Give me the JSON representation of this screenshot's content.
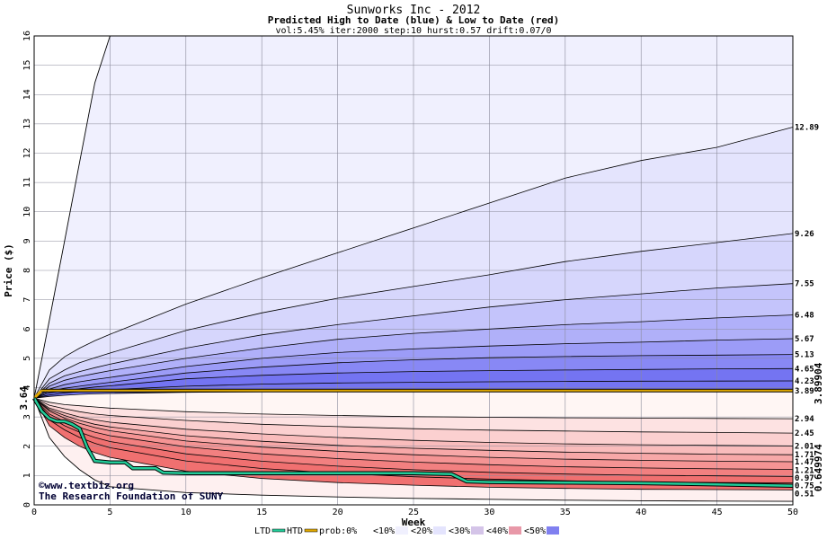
{
  "chart_data": {
    "type": "area",
    "title": "Sunworks Inc - 2012",
    "subtitle": "Predicted High to Date (blue) &  Low to Date (red)",
    "params": "vol:5.45% iter:2000 step:10 hurst:0.57 drift:0.07/0",
    "xlabel": "Week",
    "ylabel": "Price ($)",
    "xlim": [
      0,
      50
    ],
    "ylim": [
      0,
      16
    ],
    "xticks": [
      0,
      5,
      10,
      15,
      20,
      25,
      30,
      35,
      40,
      45,
      50
    ],
    "yticks": [
      0,
      1,
      2,
      3,
      4,
      5,
      6,
      7,
      8,
      9,
      10,
      11,
      12,
      13,
      14,
      15,
      16
    ],
    "grid": true,
    "start_value": 3.64,
    "start_label": "3.64",
    "current_label": "3.89904",
    "current_value": 3.89904,
    "low_label": "0.649974",
    "low_value": 0.649974,
    "high_end_labels": [
      "12.89",
      "9.26",
      "7.55",
      "6.48",
      "5.67",
      "5.13",
      "4.65",
      "4.23",
      "3.89"
    ],
    "low_end_labels": [
      "2.94",
      "2.45",
      "2.01",
      "1.71",
      "1.47",
      "1.21",
      "0.97",
      "0.75",
      "0.51"
    ],
    "x": [
      0,
      1,
      2,
      3,
      4,
      5,
      10,
      15,
      20,
      25,
      30,
      35,
      40,
      45,
      50
    ],
    "high_series": [
      {
        "end": 12.89,
        "values": [
          3.64,
          4.6,
          5.05,
          5.35,
          5.6,
          5.82,
          6.85,
          7.75,
          8.6,
          9.45,
          10.3,
          11.15,
          11.75,
          12.2,
          12.89
        ]
      },
      {
        "end": 9.26,
        "values": [
          3.64,
          4.3,
          4.6,
          4.85,
          5.02,
          5.18,
          5.95,
          6.55,
          7.05,
          7.45,
          7.85,
          8.3,
          8.65,
          8.95,
          9.26
        ]
      },
      {
        "end": 7.55,
        "values": [
          3.64,
          4.15,
          4.4,
          4.55,
          4.68,
          4.8,
          5.35,
          5.8,
          6.15,
          6.45,
          6.75,
          7.0,
          7.2,
          7.4,
          7.55
        ]
      },
      {
        "end": 6.48,
        "values": [
          3.64,
          4.05,
          4.25,
          4.38,
          4.48,
          4.58,
          5.0,
          5.35,
          5.65,
          5.85,
          6.0,
          6.15,
          6.25,
          6.38,
          6.48
        ]
      },
      {
        "end": 5.67,
        "values": [
          3.64,
          3.95,
          4.1,
          4.2,
          4.28,
          4.35,
          4.72,
          5.0,
          5.2,
          5.32,
          5.42,
          5.5,
          5.55,
          5.62,
          5.67
        ]
      },
      {
        "end": 5.13,
        "values": [
          3.64,
          3.88,
          3.98,
          4.05,
          4.12,
          4.18,
          4.5,
          4.7,
          4.85,
          4.95,
          5.02,
          5.06,
          5.09,
          5.11,
          5.13
        ]
      },
      {
        "end": 4.65,
        "values": [
          3.64,
          3.82,
          3.9,
          3.96,
          4.02,
          4.06,
          4.3,
          4.42,
          4.5,
          4.55,
          4.58,
          4.6,
          4.62,
          4.64,
          4.65
        ]
      },
      {
        "end": 4.23,
        "values": [
          3.64,
          3.75,
          3.82,
          3.86,
          3.9,
          3.93,
          4.05,
          4.12,
          4.16,
          4.18,
          4.2,
          4.21,
          4.22,
          4.225,
          4.23
        ]
      },
      {
        "end": 3.89,
        "values": [
          3.64,
          3.7,
          3.74,
          3.77,
          3.79,
          3.8,
          3.84,
          3.86,
          3.87,
          3.875,
          3.88,
          3.885,
          3.887,
          3.889,
          3.89
        ]
      }
    ],
    "low_series": [
      {
        "end": 2.94,
        "values": [
          3.64,
          3.5,
          3.42,
          3.38,
          3.34,
          3.3,
          3.18,
          3.1,
          3.05,
          3.01,
          2.99,
          2.97,
          2.96,
          2.95,
          2.94
        ]
      },
      {
        "end": 2.45,
        "values": [
          3.64,
          3.4,
          3.28,
          3.18,
          3.1,
          3.05,
          2.88,
          2.75,
          2.67,
          2.6,
          2.55,
          2.52,
          2.49,
          2.47,
          2.45
        ]
      },
      {
        "end": 2.01,
        "values": [
          3.64,
          3.3,
          3.14,
          3.0,
          2.9,
          2.82,
          2.58,
          2.42,
          2.3,
          2.2,
          2.13,
          2.08,
          2.05,
          2.03,
          2.01
        ]
      },
      {
        "end": 1.71,
        "values": [
          3.64,
          3.25,
          3.05,
          2.88,
          2.75,
          2.66,
          2.36,
          2.17,
          2.03,
          1.93,
          1.86,
          1.8,
          1.76,
          1.73,
          1.71
        ]
      },
      {
        "end": 1.47,
        "values": [
          3.64,
          3.2,
          2.96,
          2.78,
          2.64,
          2.53,
          2.18,
          1.97,
          1.83,
          1.71,
          1.62,
          1.56,
          1.52,
          1.49,
          1.47
        ]
      },
      {
        "end": 1.21,
        "values": [
          3.64,
          3.1,
          2.84,
          2.64,
          2.48,
          2.36,
          1.98,
          1.74,
          1.58,
          1.46,
          1.37,
          1.3,
          1.26,
          1.23,
          1.21
        ]
      },
      {
        "end": 0.97,
        "values": [
          3.64,
          3.0,
          2.7,
          2.48,
          2.3,
          2.16,
          1.74,
          1.49,
          1.32,
          1.2,
          1.11,
          1.05,
          1.01,
          0.99,
          0.97
        ]
      },
      {
        "end": 0.75,
        "values": [
          3.64,
          2.9,
          2.56,
          2.3,
          2.1,
          1.95,
          1.5,
          1.24,
          1.08,
          0.96,
          0.88,
          0.82,
          0.78,
          0.76,
          0.75
        ]
      },
      {
        "end": 0.51,
        "values": [
          3.64,
          2.7,
          2.3,
          2.0,
          1.78,
          1.62,
          1.15,
          0.9,
          0.76,
          0.67,
          0.6,
          0.56,
          0.53,
          0.52,
          0.51
        ]
      }
    ],
    "envelope_upper": {
      "x": [
        0,
        1,
        2,
        3,
        4,
        5
      ],
      "values": [
        3.64,
        6.3,
        9.0,
        11.7,
        14.4,
        16
      ]
    },
    "envelope_lower": {
      "x": [
        0,
        1,
        2,
        3,
        4,
        5,
        10,
        15,
        20,
        25,
        30,
        35,
        40,
        45,
        50
      ],
      "values": [
        3.64,
        2.3,
        1.65,
        1.2,
        0.85,
        0.62,
        0.42,
        0.33,
        0.27,
        0.22,
        0.19,
        0.16,
        0.14,
        0.13,
        0.12
      ]
    },
    "ltd_series": {
      "name": "LTD",
      "x": [
        0,
        0.5,
        1,
        1.5,
        2,
        2.5,
        3,
        3.5,
        4,
        5,
        6,
        6.5,
        8,
        8.5,
        10,
        15,
        20,
        25,
        27.5,
        28.5,
        30,
        35,
        40,
        45,
        50
      ],
      "values": [
        3.64,
        3.2,
        2.95,
        2.85,
        2.85,
        2.75,
        2.6,
        1.95,
        1.5,
        1.45,
        1.45,
        1.25,
        1.25,
        1.1,
        1.08,
        1.08,
        1.08,
        1.08,
        1.05,
        0.8,
        0.78,
        0.76,
        0.74,
        0.7,
        0.649974
      ]
    },
    "htd_series": {
      "name": "HTD",
      "values": [
        3.64,
        3.89904
      ]
    },
    "legend_labels": [
      "prob:0%",
      "<10%",
      "<20%",
      "<30%",
      "<40%",
      "<50%"
    ],
    "credit_line1": "©www.textbiz.org",
    "credit_line2": "The Research Foundation of SUNY",
    "colors": {
      "high_bands": [
        "#f0f0fe",
        "#e4e4fd",
        "#d6d6fc",
        "#c4c4fb",
        "#b0b0f9",
        "#9c9cf7",
        "#8888f5",
        "#7474f2"
      ],
      "low_bands": [
        "#fef0f0",
        "#fde2e2",
        "#fbd0d0",
        "#f9bcbc",
        "#f7a8a8",
        "#f59494",
        "#f28080",
        "#f07070"
      ],
      "legend_swatches": [
        "#ffffff",
        "#f0f0fe",
        "#e4e4fd",
        "#d4c4e8",
        "#e898a8",
        "#8080f0"
      ],
      "ltd": "#22cc99",
      "htd": "#e0a800",
      "start_label": "#006644",
      "current_label": "#998800",
      "low_label": "#00aa66"
    }
  }
}
